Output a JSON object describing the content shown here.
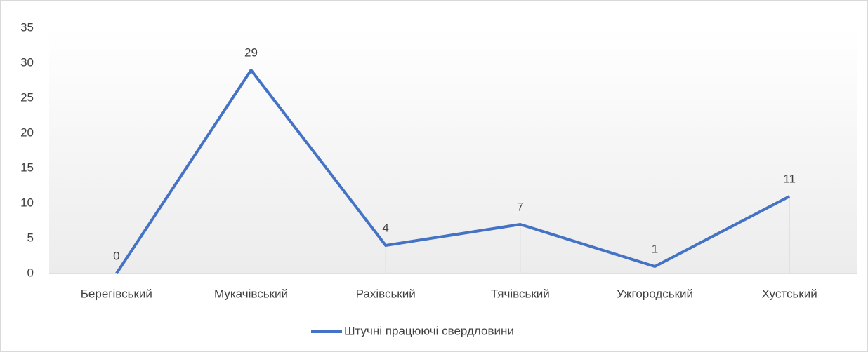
{
  "chart_data": {
    "type": "line",
    "categories": [
      "Берегівський",
      "Мукачівський",
      "Рахівський",
      "Тячівський",
      "Ужгородський",
      "Хустський"
    ],
    "series": [
      {
        "name": "Штучні працюючі свердловини",
        "color": "#4472c4",
        "values": [
          0,
          29,
          4,
          7,
          1,
          11
        ]
      }
    ],
    "ylim": [
      0,
      35
    ],
    "yticks": [
      0,
      5,
      10,
      15,
      20,
      25,
      30,
      35
    ],
    "grid": false,
    "drop_lines": true,
    "legend": "bottom"
  }
}
